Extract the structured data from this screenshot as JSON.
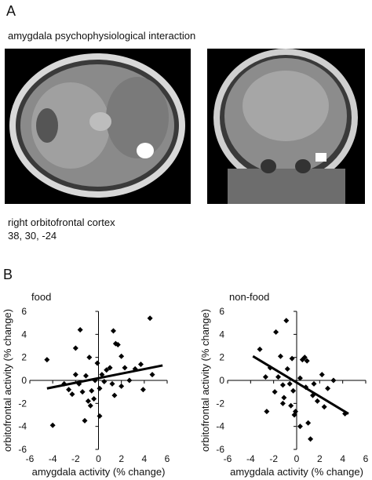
{
  "panel_a": {
    "label": "A",
    "title": "amygdala psychophysiological interaction",
    "caption_lines": [
      "right orbitofrontal cortex",
      "38, 30, -24"
    ]
  },
  "panel_b": {
    "label": "B"
  },
  "chart_data": [
    {
      "type": "scatter",
      "title": "food",
      "x_label": "amygdala activity (% change)",
      "y_label": "orbitofrontal activity (% change)",
      "xlim": [
        -6,
        6
      ],
      "ylim": [
        -6,
        6
      ],
      "xticks": [
        -6,
        -4,
        -2,
        0,
        2,
        4,
        6
      ],
      "yticks": [
        -6,
        -4,
        -2,
        0,
        2,
        4,
        6
      ],
      "color": "#000000",
      "x": [
        -4.5,
        -4,
        -1.6,
        -2,
        -3,
        -2.6,
        -2.3,
        -2,
        -1.7,
        -1.4,
        -1.1,
        -1.2,
        -0.9,
        -0.7,
        -0.4,
        -0.6,
        -0.1,
        -0.3,
        0.1,
        0.3,
        0.5,
        0.7,
        1,
        1.3,
        1.5,
        1.7,
        1.2,
        1.4,
        2,
        2.3,
        2.7,
        3.2,
        3.7,
        3.9,
        4.5,
        4.7,
        2,
        0.1,
        -0.8
      ],
      "y": [
        1.8,
        -3.9,
        4.4,
        2.8,
        -0.3,
        -0.8,
        -1.2,
        0.5,
        -0.3,
        -1,
        0.4,
        -3.5,
        -1.8,
        -2.2,
        -1.6,
        -0.9,
        1.5,
        0,
        -0.7,
        0.5,
        -0.1,
        0.9,
        1.1,
        4.3,
        3.2,
        3.1,
        -0.3,
        -1.3,
        -0.5,
        1.1,
        0,
        1,
        1.4,
        -0.8,
        5.4,
        0.5,
        2.1,
        -3.1,
        2
      ],
      "fit_line": {
        "x": [
          -4.5,
          5.6
        ],
        "y": [
          -0.7,
          1.3
        ]
      }
    },
    {
      "type": "scatter",
      "title": "non-food",
      "x_label": "amygdala activity (% change)",
      "y_label": "orbitofrontal activity (% change)",
      "xlim": [
        -6,
        6
      ],
      "ylim": [
        -6,
        6
      ],
      "xticks": [
        -6,
        -4,
        -2,
        0,
        2,
        4,
        6
      ],
      "yticks": [
        -6,
        -4,
        -2,
        0,
        2,
        4,
        6
      ],
      "color": "#000000",
      "x": [
        -3.2,
        -2.7,
        -2.3,
        -1.8,
        -1.4,
        -2.6,
        -1.9,
        -1.6,
        -1.2,
        -1.1,
        -0.9,
        -0.8,
        -0.6,
        -0.5,
        -0.3,
        -0.1,
        -0.4,
        0.3,
        0.5,
        0.7,
        0.9,
        0.8,
        1,
        1.2,
        1.4,
        1.5,
        1.8,
        2.2,
        2.4,
        2.7,
        3.2,
        4.2,
        -1.2,
        -0.2,
        0.3
      ],
      "y": [
        2.7,
        0.3,
        1.1,
        4.2,
        2.1,
        -2.7,
        -1,
        0.3,
        -0.4,
        -1.5,
        5.2,
        1,
        -0.3,
        -2.2,
        -0.9,
        -2.7,
        1.9,
        0.2,
        1.8,
        2,
        1.7,
        -0.6,
        -3.7,
        -5.1,
        -1.3,
        -0.3,
        -1.8,
        0.5,
        -2.3,
        -0.7,
        0,
        -2.9,
        -2,
        -3,
        -4
      ],
      "fit_line": {
        "x": [
          -3.8,
          4.5
        ],
        "y": [
          2.1,
          -2.9
        ]
      }
    }
  ]
}
